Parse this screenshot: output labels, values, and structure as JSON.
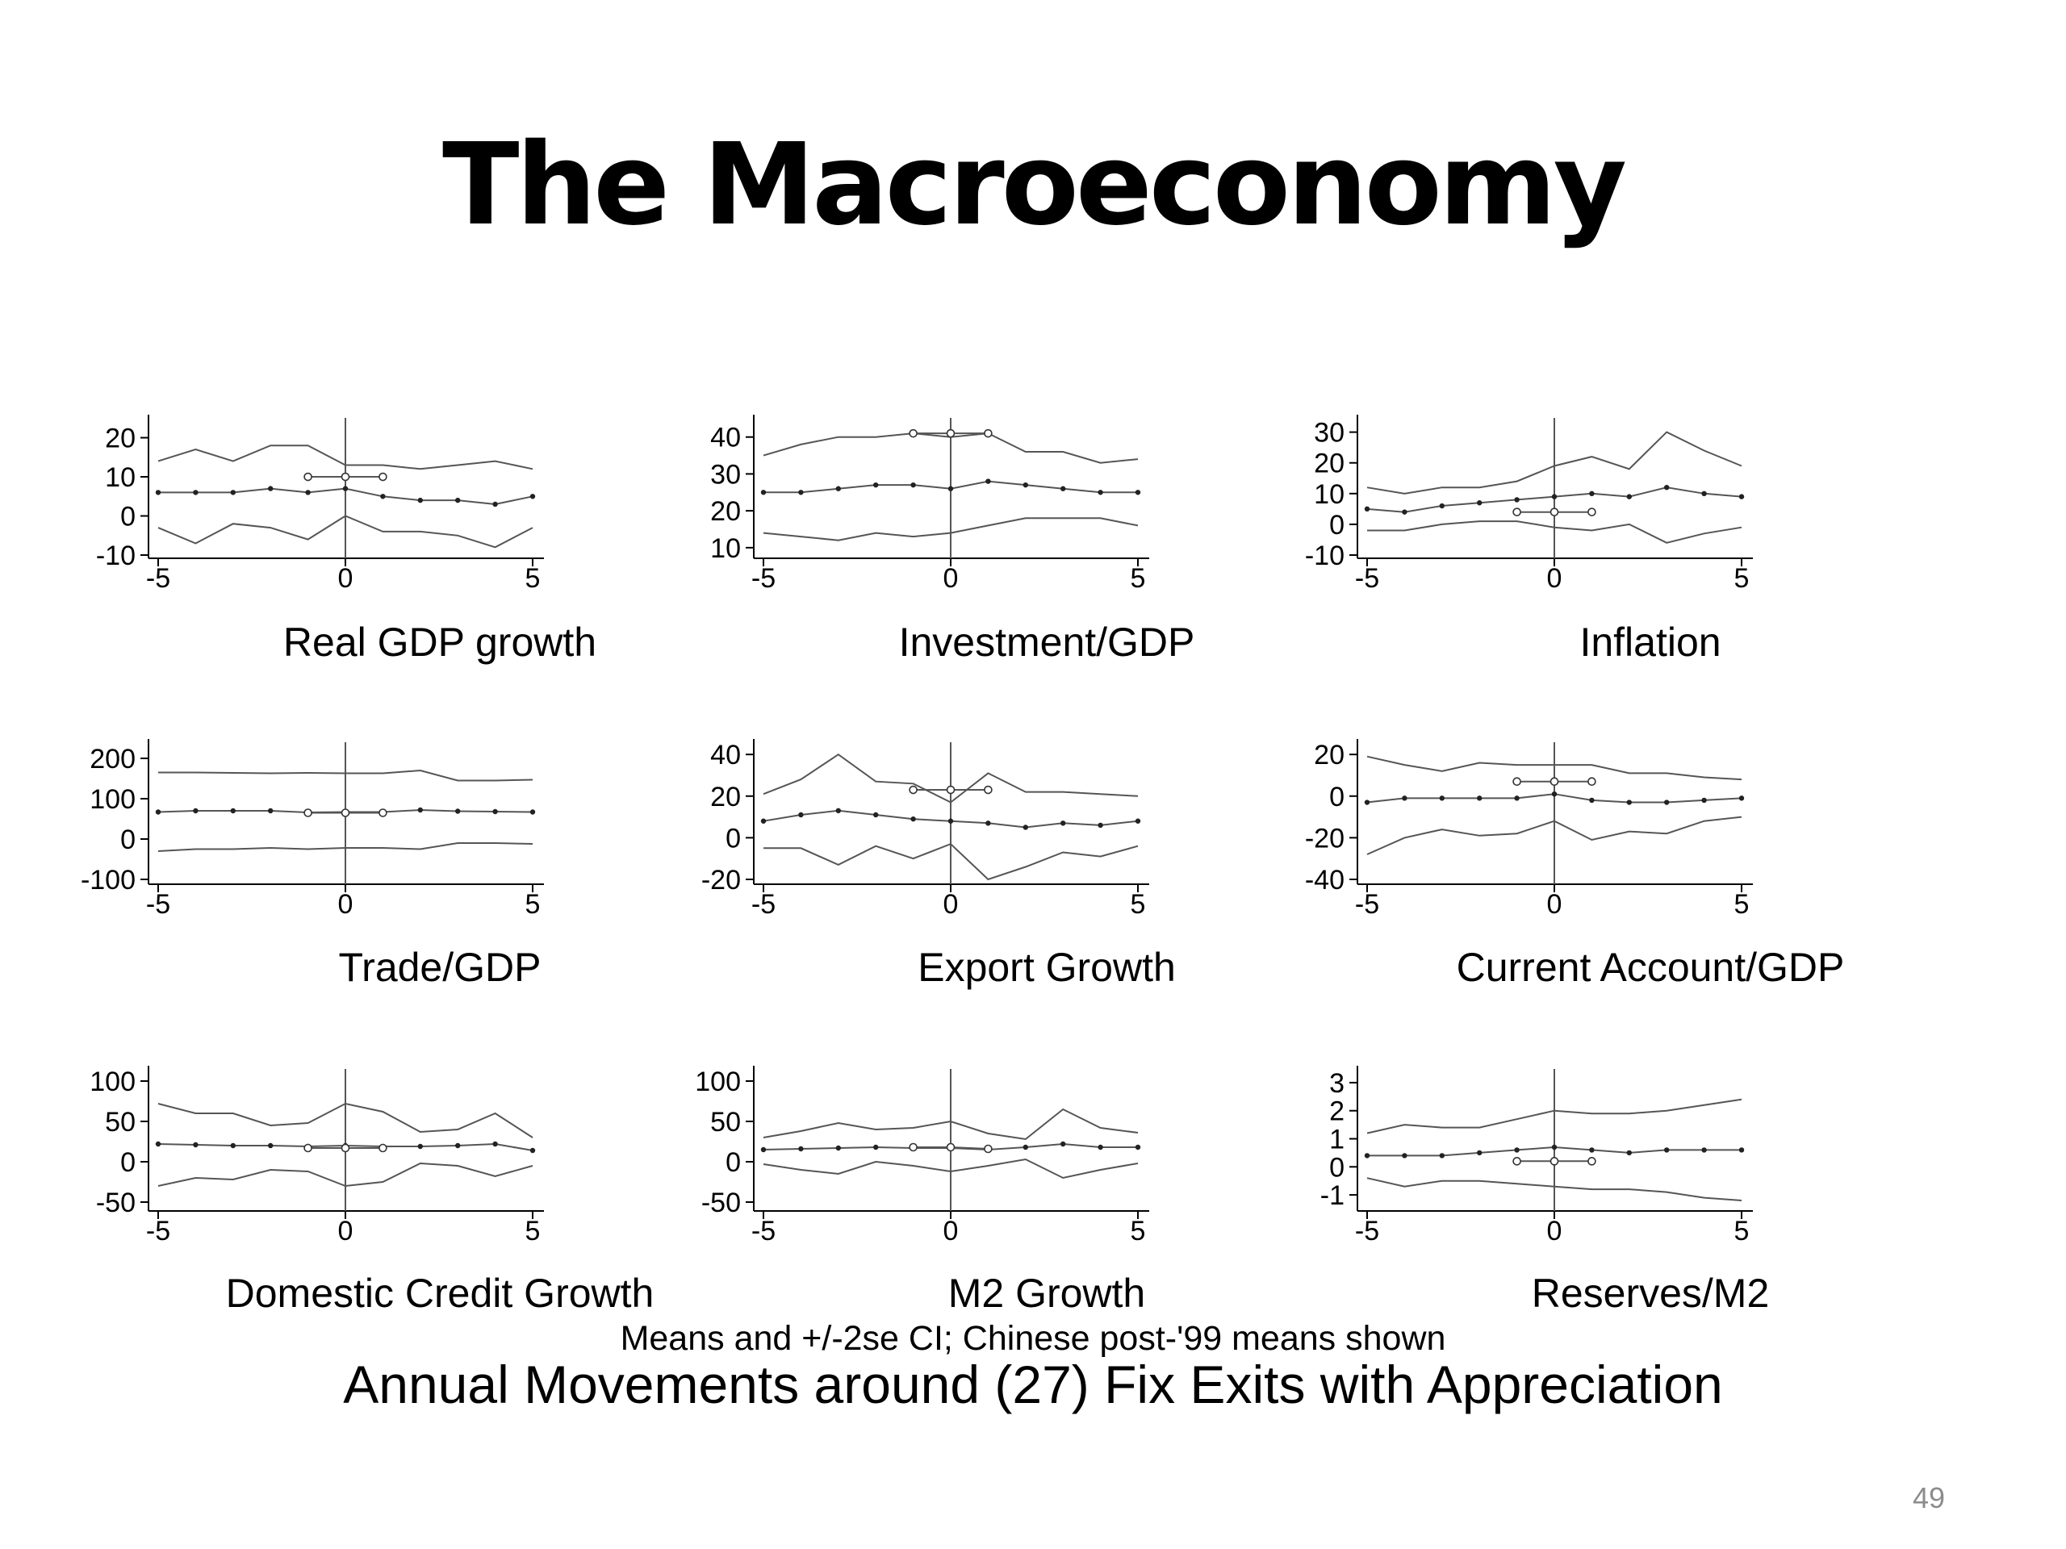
{
  "slide": {
    "title": "The Macroeconomy",
    "caption": "Means and +/-2se CI; Chinese post-'99 means shown",
    "main_caption": "Annual Movements around (27) Fix Exits with Appreciation",
    "page_number": "49"
  },
  "colors": {
    "lines": "#555555",
    "axis": "#000000",
    "text": "#000000",
    "page_number": "#8c8c8c"
  },
  "chart_data": [
    {
      "type": "line",
      "title": "Real GDP growth",
      "x": [
        -5,
        -4,
        -3,
        -2,
        -1,
        0,
        1,
        2,
        3,
        4,
        5
      ],
      "xticks": [
        -5,
        0,
        5
      ],
      "xlim": [
        -5,
        5
      ],
      "yticks": [
        -10,
        0,
        10,
        20
      ],
      "ylim": [
        -10,
        23
      ],
      "series": [
        {
          "role": "upper",
          "values": [
            14,
            17,
            14,
            18,
            18,
            13,
            13,
            12,
            13,
            14,
            12
          ]
        },
        {
          "role": "mean",
          "markers": true,
          "values": [
            6,
            6,
            6,
            7,
            6,
            7,
            5,
            4,
            4,
            3,
            5
          ]
        },
        {
          "role": "lower",
          "values": [
            -3,
            -7,
            -2,
            -3,
            -6,
            0,
            -4,
            -4,
            -5,
            -8,
            -3
          ]
        }
      ],
      "chinese_means": {
        "x": [
          -1,
          0,
          1
        ],
        "values": [
          10,
          10,
          10
        ]
      }
    },
    {
      "type": "line",
      "title": "Investment/GDP",
      "x": [
        -5,
        -4,
        -3,
        -2,
        -1,
        0,
        1,
        2,
        3,
        4,
        5
      ],
      "xticks": [
        -5,
        0,
        5
      ],
      "xlim": [
        -5,
        5
      ],
      "yticks": [
        10,
        20,
        30,
        40
      ],
      "ylim": [
        8,
        43
      ],
      "series": [
        {
          "role": "upper",
          "values": [
            35,
            38,
            40,
            40,
            41,
            40,
            41,
            36,
            36,
            33,
            34
          ]
        },
        {
          "role": "mean",
          "markers": true,
          "values": [
            25,
            25,
            26,
            27,
            27,
            26,
            28,
            27,
            26,
            25,
            25
          ]
        },
        {
          "role": "lower",
          "values": [
            14,
            13,
            12,
            14,
            13,
            14,
            16,
            18,
            18,
            18,
            16
          ]
        }
      ],
      "chinese_means": {
        "x": [
          -1,
          0,
          1
        ],
        "values": [
          41,
          41,
          41
        ]
      }
    },
    {
      "type": "line",
      "title": "Inflation",
      "x": [
        -5,
        -4,
        -3,
        -2,
        -1,
        0,
        1,
        2,
        3,
        4,
        5
      ],
      "xticks": [
        -5,
        0,
        5
      ],
      "xlim": [
        -5,
        5
      ],
      "yticks": [
        -10,
        0,
        10,
        20,
        30
      ],
      "ylim": [
        -10,
        32
      ],
      "series": [
        {
          "role": "upper",
          "values": [
            12,
            10,
            12,
            12,
            14,
            19,
            22,
            18,
            30,
            24,
            19
          ]
        },
        {
          "role": "mean",
          "markers": true,
          "values": [
            5,
            4,
            6,
            7,
            8,
            9,
            10,
            9,
            12,
            10,
            9
          ]
        },
        {
          "role": "lower",
          "values": [
            -2,
            -2,
            0,
            1,
            1,
            -1,
            -2,
            0,
            -6,
            -3,
            -1
          ]
        }
      ],
      "chinese_means": {
        "x": [
          -1,
          0,
          1
        ],
        "values": [
          4,
          4,
          4
        ]
      }
    },
    {
      "type": "line",
      "title": "Trade/GDP",
      "x": [
        -5,
        -4,
        -3,
        -2,
        -1,
        0,
        1,
        2,
        3,
        4,
        5
      ],
      "xticks": [
        -5,
        0,
        5
      ],
      "xlim": [
        -5,
        5
      ],
      "yticks": [
        -100,
        0,
        100,
        200
      ],
      "ylim": [
        -100,
        220
      ],
      "series": [
        {
          "role": "upper",
          "values": [
            165,
            165,
            164,
            163,
            164,
            163,
            163,
            170,
            145,
            145,
            147
          ]
        },
        {
          "role": "mean",
          "markers": true,
          "values": [
            67,
            70,
            70,
            70,
            66,
            67,
            67,
            72,
            69,
            68,
            67
          ]
        },
        {
          "role": "lower",
          "values": [
            -30,
            -25,
            -25,
            -22,
            -25,
            -22,
            -22,
            -25,
            -10,
            -10,
            -12
          ]
        }
      ],
      "chinese_means": {
        "x": [
          -1,
          0,
          1
        ],
        "values": [
          65,
          65,
          65
        ]
      }
    },
    {
      "type": "line",
      "title": "Export Growth",
      "x": [
        -5,
        -4,
        -3,
        -2,
        -1,
        0,
        1,
        2,
        3,
        4,
        5
      ],
      "xticks": [
        -5,
        0,
        5
      ],
      "xlim": [
        -5,
        5
      ],
      "yticks": [
        -20,
        0,
        20,
        40
      ],
      "ylim": [
        -20,
        42
      ],
      "series": [
        {
          "role": "upper",
          "values": [
            21,
            28,
            40,
            27,
            26,
            17,
            31,
            22,
            22,
            21,
            20
          ]
        },
        {
          "role": "mean",
          "markers": true,
          "values": [
            8,
            11,
            13,
            11,
            9,
            8,
            7,
            5,
            7,
            6,
            8
          ]
        },
        {
          "role": "lower",
          "values": [
            -5,
            -5,
            -13,
            -4,
            -10,
            -3,
            -20,
            -14,
            -7,
            -9,
            -4
          ]
        }
      ],
      "chinese_means": {
        "x": [
          -1,
          0,
          1
        ],
        "values": [
          23,
          23,
          23
        ]
      }
    },
    {
      "type": "line",
      "title": "Current Account/GDP",
      "x": [
        -5,
        -4,
        -3,
        -2,
        -1,
        0,
        1,
        2,
        3,
        4,
        5
      ],
      "xticks": [
        -5,
        0,
        5
      ],
      "xlim": [
        -5,
        5
      ],
      "yticks": [
        -40,
        -20,
        0,
        20
      ],
      "ylim": [
        -40,
        22
      ],
      "series": [
        {
          "role": "upper",
          "values": [
            19,
            15,
            12,
            16,
            15,
            15,
            15,
            11,
            11,
            9,
            8
          ]
        },
        {
          "role": "mean",
          "markers": true,
          "values": [
            -3,
            -1,
            -1,
            -1,
            -1,
            1,
            -2,
            -3,
            -3,
            -2,
            -1
          ]
        },
        {
          "role": "lower",
          "values": [
            -28,
            -20,
            -16,
            -19,
            -18,
            -12,
            -21,
            -17,
            -18,
            -12,
            -10
          ]
        }
      ],
      "chinese_means": {
        "x": [
          -1,
          0,
          1
        ],
        "values": [
          7,
          7,
          7
        ]
      }
    },
    {
      "type": "line",
      "title": "Domestic Credit Growth",
      "x": [
        -5,
        -4,
        -3,
        -2,
        -1,
        0,
        1,
        2,
        3,
        4,
        5
      ],
      "xticks": [
        -5,
        0,
        5
      ],
      "xlim": [
        -5,
        5
      ],
      "yticks": [
        -50,
        0,
        50,
        100
      ],
      "ylim": [
        -55,
        105
      ],
      "series": [
        {
          "role": "upper",
          "values": [
            72,
            60,
            60,
            45,
            48,
            72,
            62,
            37,
            40,
            60,
            30
          ]
        },
        {
          "role": "mean",
          "markers": true,
          "values": [
            22,
            21,
            20,
            20,
            19,
            20,
            19,
            19,
            20,
            22,
            14
          ]
        },
        {
          "role": "lower",
          "values": [
            -30,
            -20,
            -22,
            -10,
            -12,
            -30,
            -25,
            -2,
            -5,
            -18,
            -5
          ]
        }
      ],
      "chinese_means": {
        "x": [
          -1,
          0,
          1
        ],
        "values": [
          17,
          17,
          17
        ]
      }
    },
    {
      "type": "line",
      "title": "M2 Growth",
      "x": [
        -5,
        -4,
        -3,
        -2,
        -1,
        0,
        1,
        2,
        3,
        4,
        5
      ],
      "xticks": [
        -5,
        0,
        5
      ],
      "xlim": [
        -5,
        5
      ],
      "yticks": [
        -50,
        0,
        50,
        100
      ],
      "ylim": [
        -55,
        105
      ],
      "series": [
        {
          "role": "upper",
          "values": [
            30,
            38,
            48,
            40,
            42,
            50,
            35,
            28,
            65,
            42,
            36
          ]
        },
        {
          "role": "mean",
          "markers": true,
          "values": [
            15,
            16,
            17,
            18,
            17,
            17,
            15,
            18,
            22,
            18,
            18
          ]
        },
        {
          "role": "lower",
          "values": [
            -3,
            -10,
            -15,
            0,
            -5,
            -12,
            -5,
            3,
            -20,
            -10,
            -2
          ]
        }
      ],
      "chinese_means": {
        "x": [
          -1,
          0,
          1
        ],
        "values": [
          18,
          18,
          16
        ]
      }
    },
    {
      "type": "line",
      "title": "Reserves/M2",
      "x": [
        -5,
        -4,
        -3,
        -2,
        -1,
        0,
        1,
        2,
        3,
        4,
        5
      ],
      "xticks": [
        -5,
        0,
        5
      ],
      "xlim": [
        -5,
        5
      ],
      "yticks": [
        -1,
        0,
        1,
        2,
        3
      ],
      "ylim": [
        -1.4,
        3.2
      ],
      "series": [
        {
          "role": "upper",
          "values": [
            1.2,
            1.5,
            1.4,
            1.4,
            1.7,
            2.0,
            1.9,
            1.9,
            2.0,
            2.2,
            2.4
          ]
        },
        {
          "role": "mean",
          "markers": true,
          "values": [
            0.4,
            0.4,
            0.4,
            0.5,
            0.6,
            0.7,
            0.6,
            0.5,
            0.6,
            0.6,
            0.6
          ]
        },
        {
          "role": "lower",
          "values": [
            -0.4,
            -0.7,
            -0.5,
            -0.5,
            -0.6,
            -0.7,
            -0.8,
            -0.8,
            -0.9,
            -1.1,
            -1.2
          ]
        }
      ],
      "chinese_means": {
        "x": [
          -1,
          0,
          1
        ],
        "values": [
          0.2,
          0.2,
          0.2
        ]
      }
    }
  ]
}
